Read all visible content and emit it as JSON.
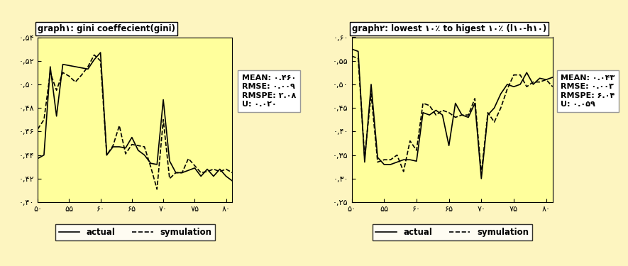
{
  "chart_data": [
    {
      "type": "line",
      "title": "graph۱: gini coeffecient(gini)",
      "annotations": [
        "MEAN: ۰.۴۶۰",
        "RMSE: ۰.۰۰۹",
        "RMSPE: ۲.۰۸",
        "U: ۰.۰۲۰"
      ],
      "x": [
        50,
        51,
        52,
        53,
        54,
        55,
        56,
        57,
        58,
        59,
        60,
        61,
        62,
        63,
        64,
        65,
        66,
        67,
        68,
        69,
        70,
        71,
        72,
        73,
        74,
        75,
        76,
        77,
        78,
        79,
        80,
        81
      ],
      "series": [
        {
          "name": "actual",
          "color": "#000000",
          "line_style": "solid",
          "values": [
            0.437,
            0.44,
            0.515,
            0.473,
            0.517,
            0.516,
            0.515,
            0.514,
            0.513,
            0.521,
            0.527,
            0.44,
            0.447,
            0.447,
            0.446,
            0.455,
            0.444,
            0.44,
            0.433,
            0.432,
            0.487,
            0.435,
            0.425,
            0.425,
            0.427,
            0.429,
            0.422,
            0.428,
            0.422,
            0.428,
            0.422,
            0.418
          ]
        },
        {
          "name": "symulation",
          "color": "#000000",
          "line_style": "dashed",
          "values": [
            0.462,
            0.47,
            0.51,
            0.495,
            0.51,
            0.507,
            0.502,
            0.508,
            0.515,
            0.525,
            0.52,
            0.44,
            0.448,
            0.465,
            0.441,
            0.449,
            0.448,
            0.447,
            0.43,
            0.411,
            0.47,
            0.42,
            0.425,
            0.425,
            0.437,
            0.431,
            0.425,
            0.426,
            0.428,
            0.426,
            0.428,
            0.425
          ]
        }
      ],
      "xlim": [
        50,
        81
      ],
      "xticks": [
        {
          "value": 50,
          "label": "۵۰"
        },
        {
          "value": 55,
          "label": "۵۵"
        },
        {
          "value": 60,
          "label": "۶۰"
        },
        {
          "value": 65,
          "label": "۶۵"
        },
        {
          "value": 70,
          "label": "۷۰"
        },
        {
          "value": 75,
          "label": "۷۵"
        },
        {
          "value": 80,
          "label": "۸۰"
        }
      ],
      "ylim": [
        0.4,
        0.54
      ],
      "yticks": [
        {
          "value": 0.4,
          "label": "۰,۴۰"
        },
        {
          "value": 0.42,
          "label": "۰,۴۲"
        },
        {
          "value": 0.44,
          "label": "۰,۴۴"
        },
        {
          "value": 0.46,
          "label": "۰,۴۶"
        },
        {
          "value": 0.48,
          "label": "۰,۴۸"
        },
        {
          "value": 0.5,
          "label": "۰,۵۰"
        },
        {
          "value": 0.52,
          "label": "۰,۵۲"
        },
        {
          "value": 0.54,
          "label": "۰,۵۴"
        }
      ],
      "grid": false,
      "legend": "bottom"
    },
    {
      "type": "line",
      "title": "graph۲: lowest ۱۰٪ to higest ۱۰٪ (l۱۰-h۱۰)",
      "annotations": [
        "MEAN: ۰.۰۴۳",
        "RMSE: ۰.۰۰۳",
        "RMSPE: ۶.۰۴",
        "U: ۰.۰۵۹"
      ],
      "x": [
        50,
        51,
        52,
        53,
        54,
        55,
        56,
        57,
        58,
        59,
        60,
        61,
        62,
        63,
        64,
        65,
        66,
        67,
        68,
        69,
        70,
        71,
        72,
        73,
        74,
        75,
        76,
        77,
        78,
        79,
        80,
        81
      ],
      "series": [
        {
          "name": "actual",
          "color": "#000000",
          "line_style": "solid",
          "values": [
            0.575,
            0.57,
            0.335,
            0.5,
            0.345,
            0.33,
            0.33,
            0.335,
            0.34,
            0.34,
            0.337,
            0.44,
            0.435,
            0.445,
            0.435,
            0.37,
            0.46,
            0.435,
            0.43,
            0.46,
            0.3,
            0.435,
            0.45,
            0.48,
            0.5,
            0.495,
            0.5,
            0.525,
            0.5,
            0.513,
            0.51,
            0.515
          ]
        },
        {
          "name": "symulation",
          "color": "#000000",
          "line_style": "dashed",
          "values": [
            0.56,
            0.555,
            0.345,
            0.48,
            0.335,
            0.34,
            0.34,
            0.35,
            0.315,
            0.38,
            0.36,
            0.46,
            0.455,
            0.435,
            0.445,
            0.44,
            0.43,
            0.435,
            0.435,
            0.47,
            0.31,
            0.44,
            0.42,
            0.45,
            0.49,
            0.52,
            0.52,
            0.495,
            0.505,
            0.505,
            0.51,
            0.495
          ]
        }
      ],
      "xlim": [
        50,
        81
      ],
      "xticks": [
        {
          "value": 50,
          "label": "۵۰"
        },
        {
          "value": 55,
          "label": "۵۵"
        },
        {
          "value": 60,
          "label": "۶۰"
        },
        {
          "value": 65,
          "label": "۶۵"
        },
        {
          "value": 70,
          "label": "۷۰"
        },
        {
          "value": 75,
          "label": "۷۵"
        },
        {
          "value": 80,
          "label": "۸۰"
        }
      ],
      "ylim": [
        0.25,
        0.6
      ],
      "yticks": [
        {
          "value": 0.25,
          "label": "۰,۲۵"
        },
        {
          "value": 0.3,
          "label": "۰,۳۰"
        },
        {
          "value": 0.35,
          "label": "۰,۳۵"
        },
        {
          "value": 0.4,
          "label": "۰,۴۰"
        },
        {
          "value": 0.45,
          "label": "۰,۴۵"
        },
        {
          "value": 0.5,
          "label": "۰,۵۰"
        },
        {
          "value": 0.55,
          "label": "۰,۵۵"
        },
        {
          "value": 0.6,
          "label": "۰,۶۰"
        }
      ],
      "grid": false,
      "legend": "bottom"
    }
  ]
}
